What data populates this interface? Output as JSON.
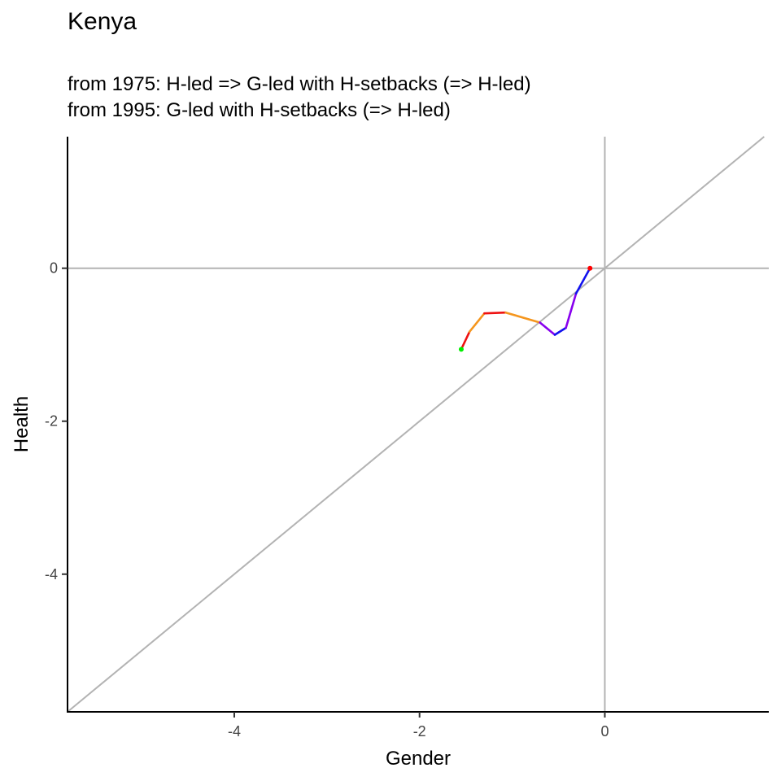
{
  "chart_data": {
    "type": "line",
    "title": "Kenya",
    "subtitle": [
      "from 1975:  H-led => G-led with H-setbacks (=> H-led)",
      "from 1995:  G-led with H-setbacks (=> H-led)"
    ],
    "xlabel": "Gender",
    "ylabel": "Health",
    "xlim": [
      -5.8,
      1.77
    ],
    "ylim": [
      -5.8,
      1.72
    ],
    "xticks": [
      -4,
      -2,
      0
    ],
    "yticks": [
      -4,
      -2,
      0
    ],
    "grid": false,
    "reference_lines": [
      "x=0",
      "y=0",
      "y=x"
    ],
    "reference_color": "#b3b3b3",
    "start_point": {
      "x": -1.55,
      "y": -1.06,
      "color": "#00ee00"
    },
    "end_point": {
      "x": -0.16,
      "y": 0.0,
      "color": "#ff0000"
    },
    "segments": [
      {
        "x": [
          -1.55,
          -1.46
        ],
        "y": [
          -1.06,
          -0.83
        ],
        "color": "#ee1111"
      },
      {
        "x": [
          -1.46,
          -1.3
        ],
        "y": [
          -0.83,
          -0.59
        ],
        "color": "#f5961e"
      },
      {
        "x": [
          -1.3,
          -1.07
        ],
        "y": [
          -0.59,
          -0.58
        ],
        "color": "#ee1111"
      },
      {
        "x": [
          -1.07,
          -0.7
        ],
        "y": [
          -0.58,
          -0.71
        ],
        "color": "#f5961e"
      },
      {
        "x": [
          -0.7,
          -0.54
        ],
        "y": [
          -0.71,
          -0.87
        ],
        "color": "#8800ee"
      },
      {
        "x": [
          -0.54,
          -0.42
        ],
        "y": [
          -0.87,
          -0.78
        ],
        "color": "#1111ee"
      },
      {
        "x": [
          -0.42,
          -0.31
        ],
        "y": [
          -0.78,
          -0.33
        ],
        "color": "#8800ee"
      },
      {
        "x": [
          -0.31,
          -0.16
        ],
        "y": [
          -0.33,
          0.0
        ],
        "color": "#1111ee"
      }
    ]
  }
}
